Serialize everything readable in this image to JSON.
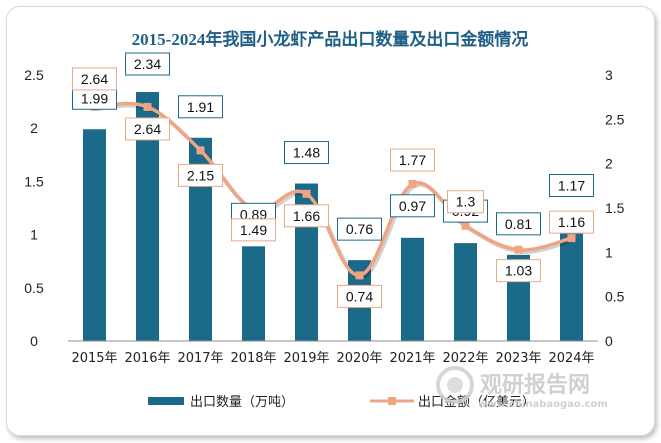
{
  "chart_data": {
    "type": "bar+line",
    "title": "2015-2024年我国小龙虾产品出口数量及出口金额情况",
    "categories": [
      "2015年",
      "2016年",
      "2017年",
      "2018年",
      "2019年",
      "2020年",
      "2021年",
      "2022年",
      "2023年",
      "2024年"
    ],
    "series": [
      {
        "name": "出口数量（万吨）",
        "type": "bar",
        "axis": "left",
        "color": "#1b6a8a",
        "values": [
          1.99,
          2.34,
          1.91,
          0.89,
          1.48,
          0.76,
          0.97,
          0.92,
          0.81,
          1.17
        ]
      },
      {
        "name": "出口金额（亿美元）",
        "type": "line",
        "axis": "right",
        "color": "#f0a582",
        "values": [
          2.64,
          2.64,
          2.15,
          1.49,
          1.66,
          0.74,
          1.77,
          1.3,
          1.03,
          1.16
        ]
      }
    ],
    "ylim_left": [
      0,
      2.5
    ],
    "yticks_left": [
      "0",
      "0.5",
      "1",
      "1.5",
      "2",
      "2.5"
    ],
    "ylim_right": [
      0,
      3
    ],
    "yticks_right": [
      "0",
      "0.5",
      "1",
      "1.5",
      "2",
      "2.5",
      "3"
    ],
    "grid": false,
    "legend_position": "bottom"
  },
  "watermark": {
    "brand": "观研报告网",
    "site": "www.chinabaogao.com"
  }
}
